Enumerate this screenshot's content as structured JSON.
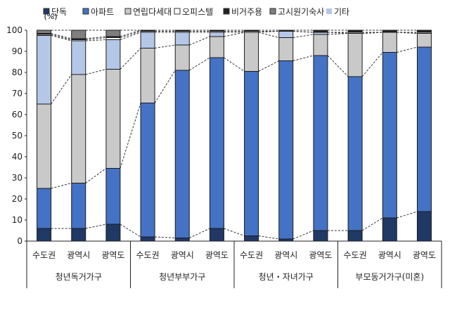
{
  "chart_data": {
    "type": "bar",
    "stacked": true,
    "ylabel": "(%)",
    "ylim": [
      0,
      100
    ],
    "yticks": [
      0,
      10,
      20,
      30,
      40,
      50,
      60,
      70,
      80,
      90,
      100
    ],
    "grid": false,
    "legend_position": "top",
    "categories": [
      "수도권",
      "광역시",
      "광역도",
      "수도권",
      "광역시",
      "광역도",
      "수도권",
      "광역시",
      "광역도",
      "수도권",
      "광역시",
      "광역도"
    ],
    "groups": [
      "청년독거가구",
      "청년부부가구",
      "청년・자녀가구",
      "부모동거가구(미혼)"
    ],
    "legend": [
      "단독",
      "아파트",
      "연립다세대",
      "오피스텔",
      "비거주용",
      "고시원기숙사",
      "기타"
    ],
    "series": [
      {
        "name": "단독",
        "color": "#203864",
        "values": [
          6,
          6,
          8,
          2,
          1.5,
          6,
          2.5,
          1,
          5,
          5,
          11,
          14
        ]
      },
      {
        "name": "아파트",
        "color": "#4472c4",
        "values": [
          19,
          21.5,
          26.5,
          63.5,
          79.5,
          81,
          78,
          84.5,
          83,
          73,
          78.5,
          78
        ]
      },
      {
        "name": "연립다세대",
        "color": "#c9c9c9",
        "values": [
          40,
          51.5,
          47,
          26,
          12,
          10,
          18.5,
          11,
          10,
          20.5,
          9.5,
          6.5
        ]
      },
      {
        "name": "기타",
        "color": "#b4c7e7",
        "values": [
          32.5,
          16,
          14,
          7.5,
          6,
          2,
          0,
          3,
          1,
          0,
          0,
          0
        ]
      },
      {
        "name": "오피스텔",
        "color": "#ffffff",
        "values": [
          0.5,
          0.5,
          1,
          0.5,
          0.5,
          0.5,
          0.5,
          0,
          0,
          0.5,
          0,
          0.5
        ]
      },
      {
        "name": "비거주용",
        "color": "#222222",
        "values": [
          0.5,
          0.5,
          0.5,
          0.5,
          0.5,
          0.5,
          0.5,
          0.5,
          1,
          1,
          1,
          1
        ]
      },
      {
        "name": "고시원기숙사",
        "color": "#7f7f7f",
        "values": [
          1.5,
          4,
          3,
          0,
          0,
          0,
          0,
          0,
          0,
          0,
          0,
          0
        ]
      }
    ]
  }
}
